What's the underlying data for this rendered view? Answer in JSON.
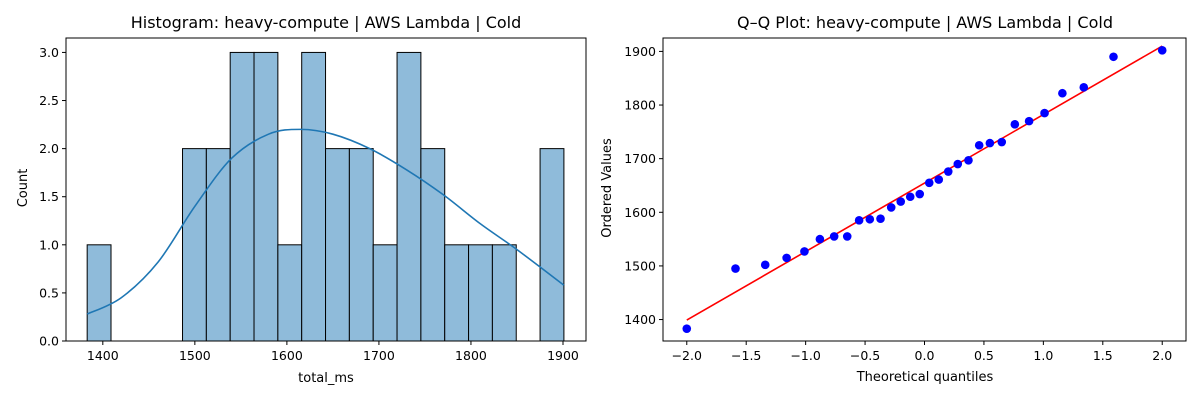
{
  "chart_data": [
    {
      "type": "bar",
      "title": "Histogram: heavy-compute | AWS Lambda | Cold",
      "xlabel": "total_ms",
      "ylabel": "Count",
      "xlim": [
        1360,
        1925
      ],
      "ylim": [
        0,
        3.15
      ],
      "xticks": [
        1400,
        1500,
        1600,
        1700,
        1800,
        1900
      ],
      "yticks": [
        "0.0",
        "0.5",
        "1.0",
        "1.5",
        "2.0",
        "2.5",
        "3.0"
      ],
      "bins": {
        "start": 1383,
        "end": 1901,
        "counts": [
          1,
          0,
          0,
          0,
          2,
          2,
          3,
          3,
          1,
          3,
          2,
          2,
          1,
          3,
          2,
          1,
          1,
          1,
          0,
          2
        ]
      },
      "kde": {
        "x": [
          1383,
          1420,
          1460,
          1500,
          1540,
          1580,
          1615,
          1650,
          1690,
          1730,
          1770,
          1810,
          1850,
          1901
        ],
        "y": [
          0.28,
          0.45,
          0.82,
          1.4,
          1.9,
          2.15,
          2.2,
          2.15,
          2.0,
          1.78,
          1.52,
          1.22,
          0.95,
          0.58
        ]
      },
      "bar_color": "#8fbbda",
      "bar_edge": "#000000",
      "line_color": "#1f77b4"
    },
    {
      "type": "scatter",
      "title": "Q–Q Plot: heavy-compute | AWS Lambda | Cold",
      "xlabel": "Theoretical quantiles",
      "ylabel": "Ordered Values",
      "xlim": [
        -2.2,
        2.2
      ],
      "ylim": [
        1360,
        1925
      ],
      "xticks": [
        "−2.0",
        "−1.5",
        "−1.0",
        "−0.5",
        "0.0",
        "0.5",
        "1.0",
        "1.5",
        "2.0"
      ],
      "xtick_values": [
        -2,
        -1.5,
        -1,
        -0.5,
        0,
        0.5,
        1,
        1.5,
        2
      ],
      "yticks": [
        1400,
        1500,
        1600,
        1700,
        1800,
        1900
      ],
      "points": {
        "x": [
          -2.0,
          -1.59,
          -1.34,
          -1.16,
          -1.01,
          -0.88,
          -0.76,
          -0.65,
          -0.55,
          -0.46,
          -0.37,
          -0.28,
          -0.2,
          -0.12,
          -0.04,
          0.04,
          0.12,
          0.2,
          0.28,
          0.37,
          0.46,
          0.55,
          0.65,
          0.76,
          0.88,
          1.01,
          1.16,
          1.34,
          1.59,
          2.0
        ],
        "y": [
          1383,
          1495,
          1502,
          1515,
          1527,
          1550,
          1555,
          1555,
          1585,
          1587,
          1588,
          1609,
          1620,
          1629,
          1634,
          1655,
          1661,
          1676,
          1690,
          1697,
          1725,
          1729,
          1731,
          1764,
          1770,
          1785,
          1822,
          1833,
          1890,
          1902
        ]
      },
      "fit_line": {
        "x": [
          -2.0,
          2.0
        ],
        "y": [
          1399,
          1910
        ]
      },
      "point_color": "#0000ff",
      "line_color": "#ff0000"
    }
  ]
}
